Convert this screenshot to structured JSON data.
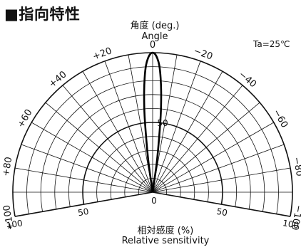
{
  "heading": "■指向特性",
  "chart_data": {
    "type": "polar",
    "title": "",
    "angle_axis_label": [
      "角度 (deg.)",
      "Angle"
    ],
    "radial_axis_label": [
      "相対感度 (%)",
      "Relative sensitivity"
    ],
    "condition": "Ta=25℃",
    "angle_range": [
      -100,
      100
    ],
    "radial_range": [
      0,
      100
    ],
    "angle_ticks": [
      {
        "angle": 0,
        "label": "0"
      },
      {
        "angle": -20,
        "label": "+20"
      },
      {
        "angle": -40,
        "label": "+40"
      },
      {
        "angle": -60,
        "label": "+60"
      },
      {
        "angle": -80,
        "label": "+80"
      },
      {
        "angle": -100,
        "label": "+100"
      },
      {
        "angle": 20,
        "label": "−20"
      },
      {
        "angle": 40,
        "label": "−40"
      },
      {
        "angle": 60,
        "label": "−60"
      },
      {
        "angle": 80,
        "label": "−80"
      },
      {
        "angle": 100,
        "label": "−100"
      }
    ],
    "radial_ticks": [
      {
        "value": 0,
        "label": "0"
      },
      {
        "value": 50,
        "label": "50"
      },
      {
        "value": 100,
        "label": "100"
      }
    ],
    "series": [
      {
        "angles": [
          -10,
          -8,
          -7,
          -6,
          -5,
          -4,
          -3,
          -2,
          -1,
          0,
          1,
          2,
          3,
          4,
          5,
          6,
          7,
          8,
          10
        ],
        "sensitivity": [
          0,
          20,
          35,
          55,
          70,
          82,
          91,
          96,
          99,
          100,
          99,
          96,
          91,
          82,
          70,
          55,
          35,
          20,
          0
        ]
      }
    ]
  }
}
